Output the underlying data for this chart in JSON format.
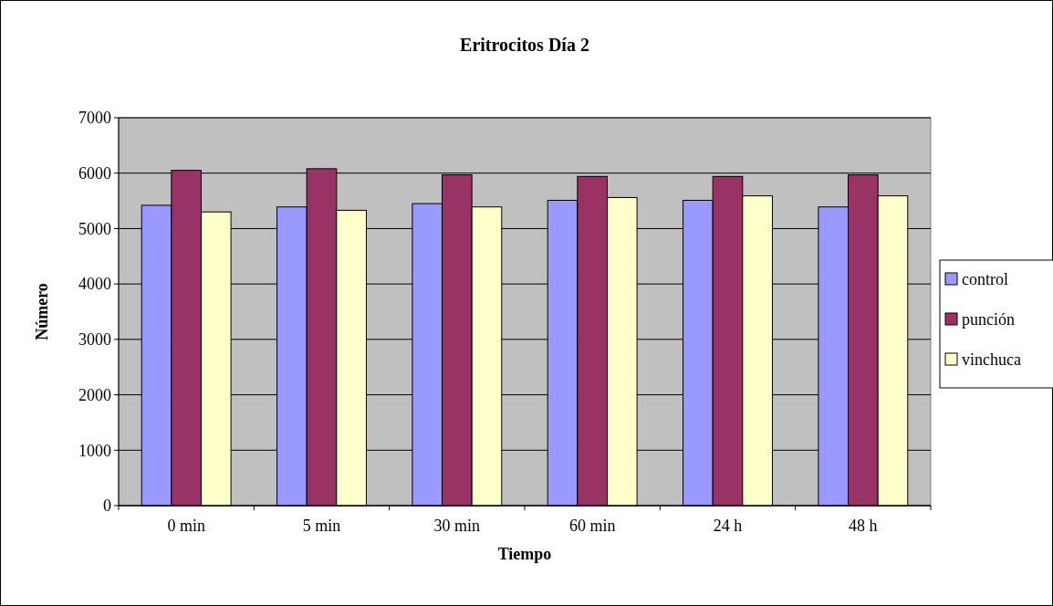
{
  "chart_data": {
    "type": "bar",
    "title": "Eritrocitos Día 2",
    "xlabel": "Tiempo",
    "ylabel": "Número",
    "categories": [
      "0 min",
      "5 min",
      "30 min",
      "60 min",
      "24 h",
      "48 h"
    ],
    "series": [
      {
        "name": "control",
        "color": "#9999ff",
        "values": [
          5420,
          5390,
          5450,
          5510,
          5510,
          5390
        ]
      },
      {
        "name": "punción",
        "color": "#993366",
        "values": [
          6050,
          6080,
          5970,
          5940,
          5940,
          5970
        ]
      },
      {
        "name": "vinchuca",
        "color": "#ffffcc",
        "values": [
          5300,
          5330,
          5390,
          5560,
          5590,
          5590
        ]
      }
    ],
    "ylim": [
      0,
      7000
    ],
    "yticks": [
      0,
      1000,
      2000,
      3000,
      4000,
      5000,
      6000,
      7000
    ],
    "grid": "y",
    "legend": "right"
  }
}
